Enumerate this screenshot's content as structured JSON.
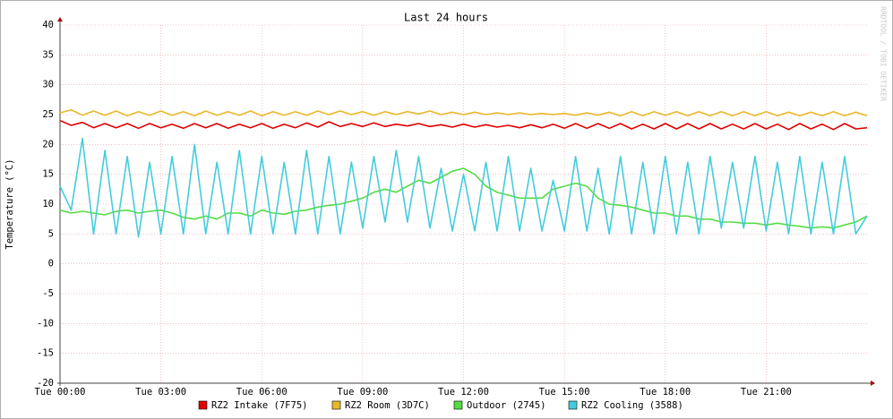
{
  "chart_data": {
    "type": "line",
    "title": "Last 24 hours",
    "y_label": "Temperature (°C)",
    "watermark": "RRDTOOL / TOBI OETIKER",
    "x": [
      0,
      20,
      40,
      60,
      80,
      100,
      120,
      140,
      160,
      180,
      200,
      220,
      240,
      260,
      280,
      300,
      320,
      340,
      360,
      380,
      400,
      420,
      440,
      460,
      480,
      500,
      520,
      540,
      560,
      580,
      600,
      620,
      640,
      660,
      680,
      700,
      720,
      740,
      760,
      780,
      800,
      820,
      840,
      860,
      880,
      900,
      920,
      940,
      960,
      980,
      1000,
      1020,
      1040,
      1060,
      1080,
      1100,
      1120,
      1140,
      1160,
      1180,
      1200,
      1220,
      1240,
      1260,
      1280,
      1300,
      1320,
      1340,
      1360,
      1380,
      1400,
      1420,
      1440
    ],
    "xlim": [
      0,
      1440
    ],
    "xticks": [
      {
        "value": 0,
        "label": "Tue 00:00"
      },
      {
        "value": 180,
        "label": "Tue 03:00"
      },
      {
        "value": 360,
        "label": "Tue 06:00"
      },
      {
        "value": 540,
        "label": "Tue 09:00"
      },
      {
        "value": 720,
        "label": "Tue 12:00"
      },
      {
        "value": 900,
        "label": "Tue 15:00"
      },
      {
        "value": 1080,
        "label": "Tue 18:00"
      },
      {
        "value": 1260,
        "label": "Tue 21:00"
      }
    ],
    "ylim": [
      -20,
      40
    ],
    "yticks": [
      -20,
      -15,
      -10,
      -5,
      0,
      5,
      10,
      15,
      20,
      25,
      30,
      35,
      40
    ],
    "grid": true,
    "series": [
      {
        "name": "RZ2 Intake (7F75)",
        "color": "#e00000",
        "values": [
          24,
          23.2,
          23.7,
          22.8,
          23.5,
          22.8,
          23.5,
          22.7,
          23.5,
          22.8,
          23.4,
          22.7,
          23.5,
          22.8,
          23.5,
          22.7,
          23.4,
          22.8,
          23.5,
          22.7,
          23.4,
          22.8,
          23.6,
          22.9,
          23.8,
          23,
          23.5,
          23,
          23.6,
          23,
          23.4,
          23.1,
          23.5,
          23,
          23.3,
          22.9,
          23.4,
          22.9,
          23.3,
          22.9,
          23.2,
          22.8,
          23.3,
          22.8,
          23.4,
          22.7,
          23.5,
          22.7,
          23.5,
          22.7,
          23.5,
          22.6,
          23.4,
          22.6,
          23.5,
          22.6,
          23.5,
          22.6,
          23.5,
          22.6,
          23.4,
          22.6,
          23.5,
          22.6,
          23.4,
          22.5,
          23.5,
          22.6,
          23.4,
          22.5,
          23.5,
          22.6,
          22.8
        ]
      },
      {
        "name": "RZ2 Room (3D7C)",
        "color": "#e8b82a",
        "values": [
          25.3,
          25.8,
          24.9,
          25.6,
          24.9,
          25.6,
          24.8,
          25.5,
          24.9,
          25.6,
          24.9,
          25.5,
          24.8,
          25.6,
          24.9,
          25.5,
          24.9,
          25.6,
          24.8,
          25.5,
          24.9,
          25.5,
          24.9,
          25.6,
          25,
          25.6,
          25,
          25.5,
          24.9,
          25.5,
          25,
          25.5,
          25.1,
          25.6,
          25,
          25.4,
          25,
          25.4,
          25,
          25.3,
          25,
          25.3,
          25,
          25.2,
          25,
          25.2,
          24.9,
          25.3,
          24.9,
          25.4,
          24.8,
          25.5,
          24.8,
          25.5,
          24.9,
          25.5,
          24.8,
          25.5,
          24.8,
          25.5,
          24.8,
          25.5,
          24.8,
          25.5,
          24.8,
          25.4,
          24.8,
          25.4,
          24.8,
          25.5,
          24.8,
          25.4,
          24.8
        ]
      },
      {
        "name": "Outdoor (2745)",
        "color": "#55dd44",
        "values": [
          9,
          8.5,
          8.8,
          8.5,
          8.2,
          8.8,
          9,
          8.5,
          8.8,
          9,
          8.5,
          7.8,
          7.5,
          8,
          7.5,
          8.5,
          8.5,
          8,
          9,
          8.5,
          8.3,
          8.8,
          9,
          9.5,
          9.8,
          10,
          10.5,
          11,
          12,
          12.5,
          12,
          13,
          14,
          13.5,
          14.5,
          15.5,
          16,
          15,
          13,
          12,
          11.5,
          11,
          11,
          11,
          12.5,
          13,
          13.5,
          13,
          11,
          10,
          9.8,
          9.5,
          9,
          8.5,
          8.5,
          8,
          8,
          7.5,
          7.5,
          7,
          7,
          6.8,
          6.8,
          6.5,
          6.8,
          6.5,
          6.3,
          6,
          6.2,
          6,
          6.5,
          7,
          8
        ]
      },
      {
        "name": "RZ2 Cooling (3588)",
        "color": "#44ccdd",
        "values": [
          13,
          9,
          21,
          5,
          19,
          5,
          18,
          4.5,
          17,
          5,
          18,
          5,
          20,
          5,
          17,
          5,
          19,
          5,
          18,
          5,
          17,
          5,
          19,
          5,
          18,
          5,
          17,
          6,
          18,
          7,
          19,
          7,
          18,
          6,
          16,
          5.5,
          15,
          5.5,
          17,
          5.5,
          18,
          5.5,
          16,
          5.5,
          14,
          5.5,
          18,
          5.5,
          16,
          5,
          18,
          5,
          17,
          5,
          18,
          5,
          17,
          5,
          18,
          6,
          17,
          6,
          18,
          5.5,
          17,
          5,
          18,
          5,
          17,
          5,
          18,
          5,
          8
        ]
      }
    ]
  }
}
